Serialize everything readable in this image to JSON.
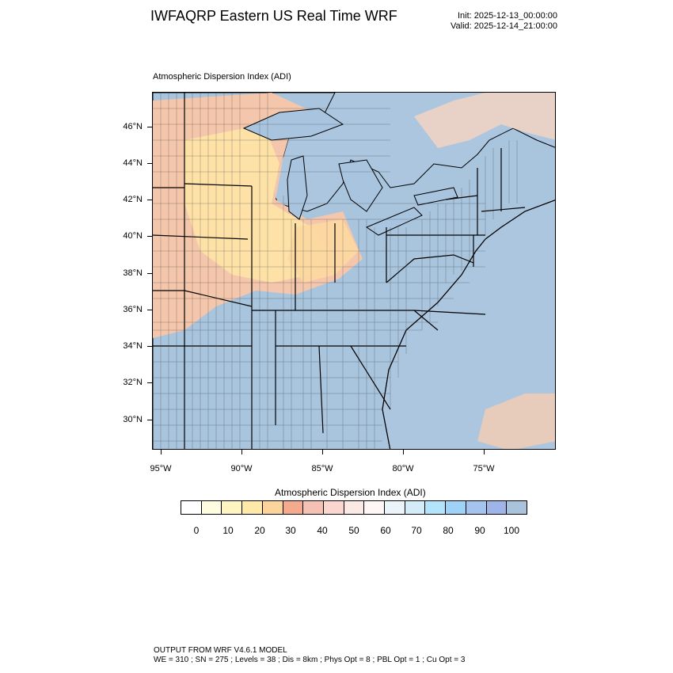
{
  "header": {
    "title": "IWFAQRP Eastern US Real Time WRF",
    "init": "Init: 2025-12-13_00:00:00",
    "valid": "Valid: 2025-12-14_21:00:00"
  },
  "map": {
    "title": "Atmospheric Dispersion Index   (ADI)",
    "lat_labels": [
      "46°N",
      "44°N",
      "42°N",
      "40°N",
      "38°N",
      "36°N",
      "34°N",
      "32°N",
      "30°N"
    ],
    "lon_labels": [
      "95°W",
      "90°W",
      "85°W",
      "80°W",
      "75°W"
    ]
  },
  "colorbar": {
    "title": "Atmospheric Dispersion Index  (ADI)",
    "labels": [
      "0",
      "10",
      "20",
      "30",
      "40",
      "50",
      "60",
      "70",
      "80",
      "90",
      "100"
    ],
    "colors": [
      "#ffffff",
      "#fffde0",
      "#fff5c0",
      "#ffe9a8",
      "#fcd39a",
      "#f5a98d",
      "#f6c1b5",
      "#fad6cf",
      "#fbe9e6",
      "#fff6f6",
      "#ebf3fb",
      "#d4ecf8",
      "#b4e4fb",
      "#9fd2f7",
      "#a4c3ef",
      "#9fb5e8",
      "#a8c3db"
    ]
  },
  "footer": {
    "line1": "OUTPUT FROM WRF V4.6.1 MODEL",
    "line2": "WE = 310 ; SN = 275 ; Levels = 38 ; Dis = 8km ; Phys Opt = 8 ; PBL Opt = 1 ; Cu Opt = 3"
  }
}
